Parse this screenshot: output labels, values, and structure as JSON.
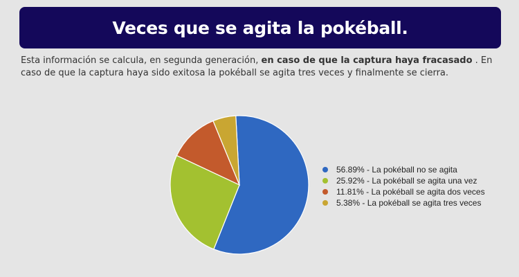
{
  "header": {
    "title": "Veces que se agita la pokéball."
  },
  "intro": {
    "text_before": "Esta información se calcula, en segunda generación, ",
    "text_bold": "en caso de que la captura haya fracasado",
    "text_after": " . En caso de que la captura haya sido exitosa la pokéball se agita tres veces y finalmente se cierra."
  },
  "chart_data": {
    "type": "pie",
    "title": "",
    "slices": [
      {
        "label": "La pokéball no se agita",
        "value": 56.89,
        "display": "56.89%",
        "color": "#2f68c1"
      },
      {
        "label": "La pokéball se agita una vez",
        "value": 25.92,
        "display": "25.92%",
        "color": "#a3c130"
      },
      {
        "label": "La pokéball se agita dos veces",
        "value": 11.81,
        "display": "11.81%",
        "color": "#c35a2c"
      },
      {
        "label": "La pokéball se agita tres veces",
        "value": 5.38,
        "display": "5.38%",
        "color": "#c9a632"
      }
    ],
    "legend_position": "right"
  }
}
